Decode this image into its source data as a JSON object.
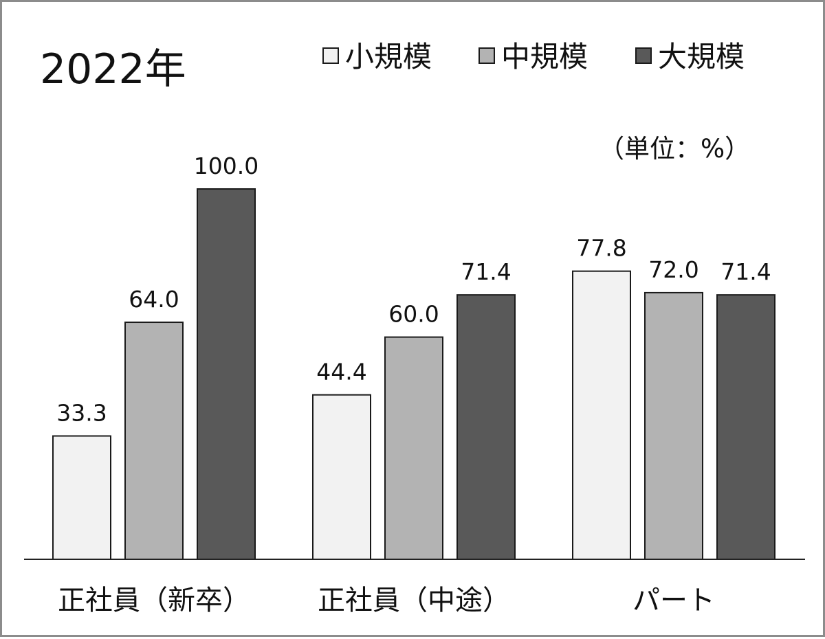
{
  "chart_data": {
    "type": "bar",
    "title": "2022年",
    "unit_label": "（単位：%）",
    "categories": [
      "正社員（新卒）",
      "正社員（中途）",
      "パート"
    ],
    "series": [
      {
        "name": "小規模",
        "color": "#f2f2f2",
        "values": [
          33.3,
          44.4,
          77.8
        ],
        "labels": [
          "33.3",
          "44.4",
          "77.8"
        ]
      },
      {
        "name": "中規模",
        "color": "#b3b3b3",
        "values": [
          64.0,
          60.0,
          72.0
        ],
        "labels": [
          "64.0",
          "60.0",
          "72.0"
        ]
      },
      {
        "name": "大規模",
        "color": "#595959",
        "values": [
          100.0,
          71.4,
          71.4
        ],
        "labels": [
          "100.0",
          "71.4",
          "71.4"
        ]
      }
    ],
    "ylim": [
      0,
      100
    ],
    "grid": false,
    "legend_position": "top-right"
  }
}
